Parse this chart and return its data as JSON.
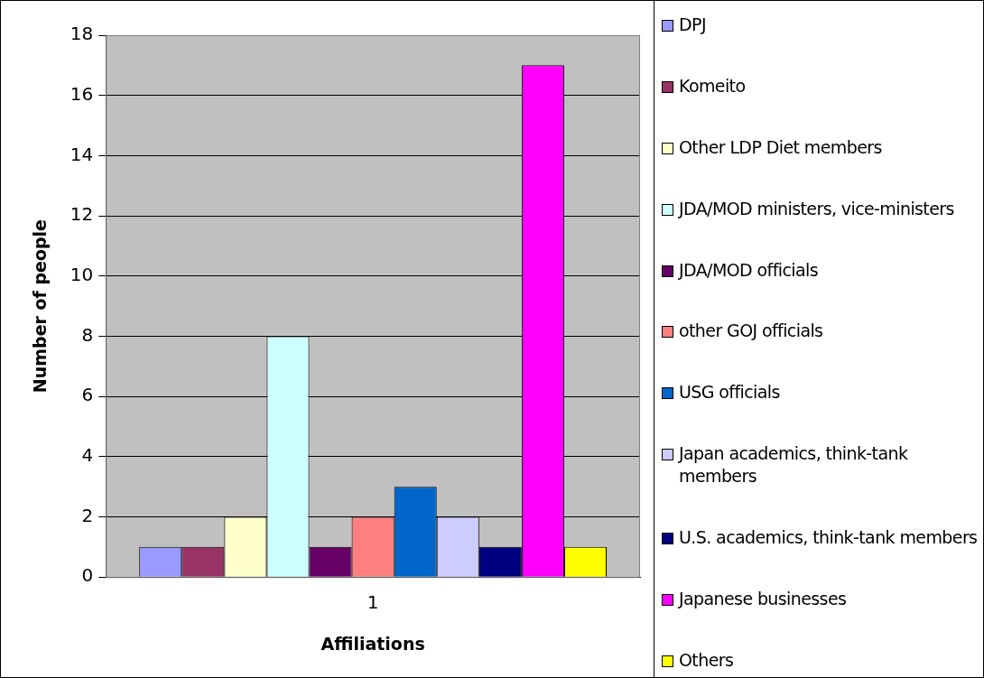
{
  "chart_data": {
    "type": "bar",
    "xlabel": "Affiliations",
    "ylabel": "Number of people",
    "categories": [
      "1"
    ],
    "series": [
      {
        "name": "DPJ",
        "color": "#9999ff",
        "values": [
          1
        ]
      },
      {
        "name": "Komeito",
        "color": "#993366",
        "values": [
          1
        ]
      },
      {
        "name": "Other LDP Diet members",
        "color": "#ffffcc",
        "values": [
          2
        ]
      },
      {
        "name": "JDA/MOD ministers, vice-ministers",
        "color": "#ccffff",
        "values": [
          8
        ]
      },
      {
        "name": "JDA/MOD officials",
        "color": "#660066",
        "values": [
          1
        ]
      },
      {
        "name": "other GOJ officials",
        "color": "#ff8080",
        "values": [
          2
        ]
      },
      {
        "name": "USG officials",
        "color": "#0066cc",
        "values": [
          3
        ]
      },
      {
        "name": "Japan academics, think-tank members",
        "color": "#ccccff",
        "values": [
          2
        ]
      },
      {
        "name": "U.S. academics, think-tank members",
        "color": "#000080",
        "values": [
          1
        ]
      },
      {
        "name": "Japanese businesses",
        "color": "#ff00ff",
        "values": [
          17
        ]
      },
      {
        "name": "Others",
        "color": "#ffff00",
        "values": [
          1
        ]
      }
    ],
    "ylim": [
      0,
      18
    ],
    "yticks": [
      0,
      2,
      4,
      6,
      8,
      10,
      12,
      14,
      16,
      18
    ],
    "grid": "y",
    "legend": "right"
  }
}
